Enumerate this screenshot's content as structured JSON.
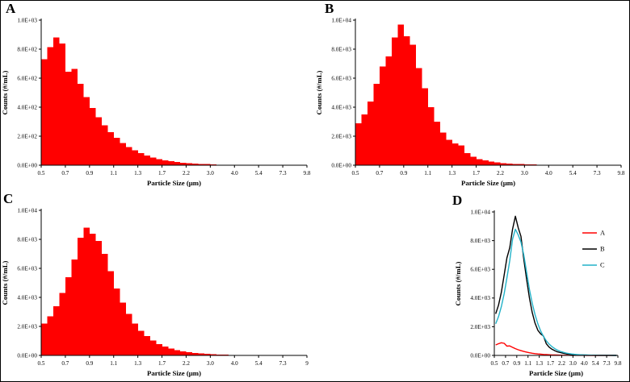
{
  "figure": {
    "title": "Particle size distribution panels"
  },
  "colors": {
    "bar_red": "#FF0000",
    "series_a": "#FF0000",
    "series_b": "#000000",
    "series_c": "#22B2C8",
    "axis": "#000000"
  },
  "chart_data": [
    {
      "id": "A",
      "panel_label": "A",
      "type": "bar",
      "xlabel": "Particle Size  (μm)",
      "ylabel": "Counts (#/mL)",
      "x_tick_labels": [
        "0.5",
        "0.7",
        "0.9",
        "1.1",
        "1.3",
        "1.7",
        "2.2",
        "3.0",
        "4.0",
        "5.4",
        "7.3",
        "9.8"
      ],
      "y_tick_labels": [
        "0.0E+00",
        "2.0E+02",
        "4.0E+02",
        "6.0E+02",
        "8.0E+02",
        "1.0E+03"
      ],
      "ylim": [
        0,
        1000
      ],
      "bar_color": "#FF0000",
      "values": [
        730,
        815,
        880,
        840,
        645,
        665,
        560,
        470,
        395,
        330,
        275,
        228,
        188,
        154,
        126,
        102,
        83,
        67,
        54,
        43,
        34,
        27,
        22,
        17,
        14,
        11,
        9,
        7,
        5,
        4,
        3,
        3,
        2,
        2,
        1,
        1,
        1,
        1,
        0,
        0,
        0,
        0,
        0,
        0
      ]
    },
    {
      "id": "B",
      "panel_label": "B",
      "type": "bar",
      "xlabel": "Particle Size (μm)",
      "ylabel": "Counts (#/mL)",
      "x_tick_labels": [
        "0.5",
        "0.7",
        "0.9",
        "1.1",
        "1.3",
        "1.7",
        "2.2",
        "3.0",
        "4.0",
        "5.4",
        "7.3",
        "9.8"
      ],
      "y_tick_labels": [
        "0.0E+00",
        "2.0E+03",
        "4.0E+03",
        "6.0E+03",
        "8.0E+03",
        "1.0E+04"
      ],
      "ylim": [
        0,
        10000
      ],
      "bar_color": "#FF0000",
      "values": [
        2900,
        3500,
        4400,
        5600,
        6800,
        7500,
        8800,
        9700,
        8900,
        8300,
        6700,
        5300,
        4000,
        3000,
        2250,
        1750,
        1500,
        1350,
        820,
        580,
        430,
        330,
        250,
        195,
        150,
        115,
        90,
        70,
        55,
        42,
        33,
        26,
        20,
        16,
        13,
        10,
        8,
        6,
        5,
        4,
        3,
        3,
        2,
        2
      ]
    },
    {
      "id": "C",
      "panel_label": "C",
      "type": "bar",
      "xlabel": "Particle Size (μm)",
      "ylabel": "Counts (#/mL)",
      "x_tick_labels": [
        "0.5",
        "0.7",
        "0.9",
        "1.1",
        "1.3",
        "1.7",
        "2.2",
        "3.0",
        "4.0",
        "5.4",
        "7.3",
        "9"
      ],
      "y_tick_labels": [
        "0.0E+00",
        "2.0E+03",
        "4.0E+03",
        "6.0E+03",
        "8.0E+03",
        "1.0E+04"
      ],
      "ylim": [
        0,
        10000
      ],
      "bar_color": "#FF0000",
      "values": [
        2200,
        2700,
        3400,
        4300,
        5400,
        6600,
        8100,
        8800,
        8400,
        7900,
        7000,
        5800,
        4600,
        3650,
        2850,
        2200,
        1700,
        1320,
        1020,
        790,
        610,
        470,
        365,
        280,
        218,
        168,
        130,
        100,
        78,
        60,
        47,
        36,
        28,
        22,
        17,
        13,
        10,
        8,
        6,
        5,
        4,
        3,
        2,
        2
      ]
    },
    {
      "id": "D",
      "panel_label": "D",
      "type": "line",
      "xlabel": "Particle Size (μm)",
      "ylabel": "Counts (#/mL)",
      "x_tick_labels": [
        "0.5",
        "0.7",
        "0.9",
        "1.1",
        "1.3",
        "1.7",
        "2.2",
        "3.0",
        "4.0",
        "5.4",
        "7.3",
        "9.8"
      ],
      "y_tick_labels": [
        "0.0E+00",
        "2.0E+03",
        "4.0E+03",
        "6.0E+03",
        "8.0E+03",
        "1.0E+04"
      ],
      "ylim": [
        0,
        10000
      ],
      "legend_position": "right-inside",
      "series": [
        {
          "name": "A",
          "color": "#FF0000",
          "values": [
            730,
            815,
            880,
            840,
            645,
            665,
            560,
            470,
            395,
            330,
            275,
            228,
            188,
            154,
            126,
            102,
            83,
            67,
            54,
            43,
            34,
            27,
            22,
            17,
            14,
            11,
            9,
            7,
            5,
            4,
            3,
            3,
            2,
            2,
            1,
            1,
            1,
            1,
            0,
            0,
            0,
            0,
            0,
            0
          ]
        },
        {
          "name": "B",
          "color": "#000000",
          "values": [
            2900,
            3500,
            4400,
            5600,
            6800,
            7500,
            8800,
            9700,
            8900,
            8300,
            6700,
            5300,
            4000,
            3000,
            2250,
            1750,
            1500,
            1350,
            820,
            580,
            430,
            330,
            250,
            195,
            150,
            115,
            90,
            70,
            55,
            42,
            33,
            26,
            20,
            16,
            13,
            10,
            8,
            6,
            5,
            4,
            3,
            3,
            2,
            2
          ]
        },
        {
          "name": "C",
          "color": "#22B2C8",
          "values": [
            2200,
            2700,
            3400,
            4300,
            5400,
            6600,
            8100,
            8800,
            8400,
            7900,
            7000,
            5800,
            4600,
            3650,
            2850,
            2200,
            1700,
            1320,
            1020,
            790,
            610,
            470,
            365,
            280,
            218,
            168,
            130,
            100,
            78,
            60,
            47,
            36,
            28,
            22,
            17,
            13,
            10,
            8,
            6,
            5,
            4,
            3,
            2,
            2
          ]
        }
      ]
    }
  ]
}
